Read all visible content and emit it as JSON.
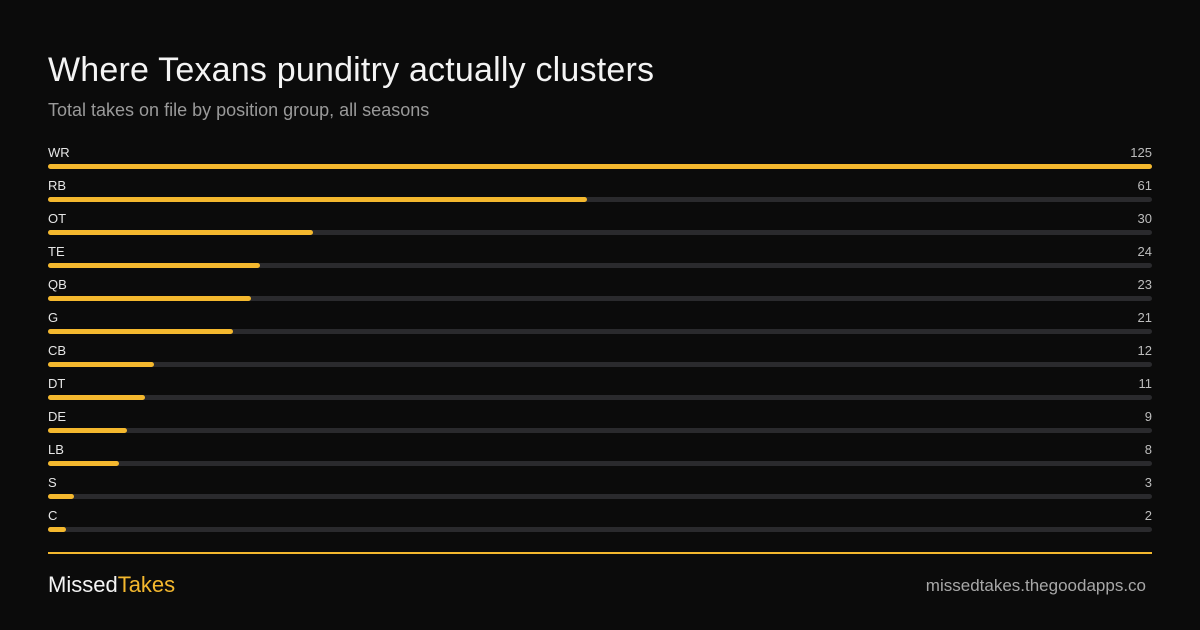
{
  "header": {
    "title": "Where Texans punditry actually clusters",
    "subtitle": "Total takes on file by position group, all seasons"
  },
  "colors": {
    "background": "#0b0b0b",
    "bar": "#f4b82e",
    "track": "#2a2a2d",
    "accent": "#f4b82e"
  },
  "chart_data": {
    "type": "bar",
    "orientation": "horizontal",
    "title": "Where Texans punditry actually clusters",
    "subtitle": "Total takes on file by position group, all seasons",
    "categories": [
      "WR",
      "RB",
      "OT",
      "TE",
      "QB",
      "G",
      "CB",
      "DT",
      "DE",
      "LB",
      "S",
      "C"
    ],
    "values": [
      125,
      61,
      30,
      24,
      23,
      21,
      12,
      11,
      9,
      8,
      3,
      2
    ],
    "xlim": [
      0,
      125
    ],
    "grid": false,
    "legend": "none"
  },
  "footer": {
    "brand_part1": "Missed",
    "brand_part2": "Takes",
    "site": "missedtakes.thegoodapps.co"
  }
}
